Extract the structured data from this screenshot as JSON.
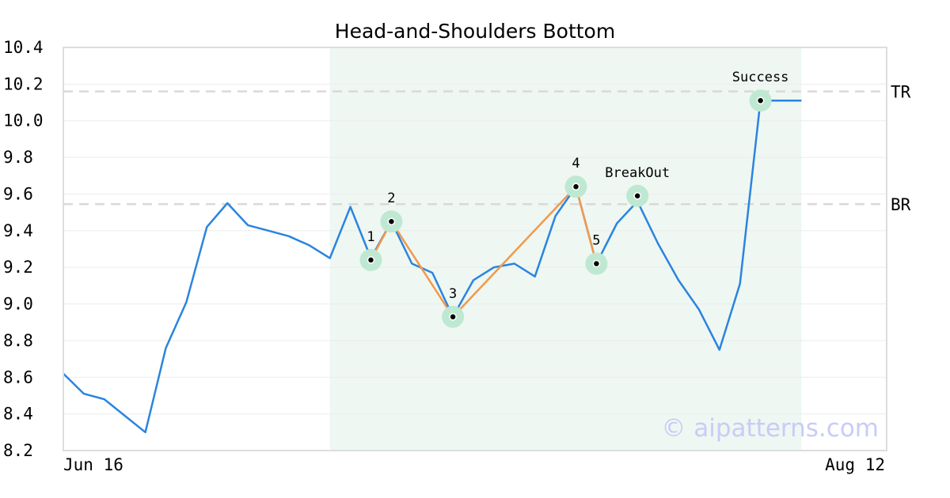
{
  "chart_data": {
    "type": "line",
    "title": "Head-and-Shoulders Bottom",
    "xlabel": "",
    "ylabel": "",
    "ylim": [
      8.2,
      10.4
    ],
    "yticks": [
      "10.4",
      "10.2",
      "10.0",
      "9.8",
      "9.6",
      "9.4",
      "9.2",
      "9.0",
      "8.8",
      "8.6",
      "8.4",
      "8.2"
    ],
    "xtick_labels": [
      "Jun 16",
      "Aug 12"
    ],
    "grid": true,
    "colors": {
      "price": "#2b84e0",
      "pattern": "#f2994a",
      "highlight_band": "#eef7f2",
      "marker_halo": "#bfe8d2",
      "reference_line": "#d9d9d9",
      "watermark": "#c8ccf7"
    },
    "series": [
      {
        "values": [
          8.62,
          8.51,
          8.48,
          8.39,
          8.3,
          8.76,
          9.01,
          9.42,
          9.55,
          9.43,
          9.4,
          9.37,
          9.32,
          9.25,
          9.53,
          9.25,
          9.45,
          9.22,
          9.17,
          8.93,
          9.13,
          9.2,
          9.22,
          9.15,
          9.48,
          9.64,
          9.22,
          9.44,
          9.56,
          9.33,
          9.13,
          8.97,
          8.75,
          9.11,
          10.11,
          10.11,
          10.11
        ]
      }
    ],
    "highlight_range": {
      "start_index": 13,
      "end_index": 36
    },
    "reference_lines": [
      {
        "label": "TR",
        "value": 10.16
      },
      {
        "label": "BR",
        "value": 9.545
      }
    ],
    "pattern_points": [
      {
        "index": 15,
        "value": 9.24,
        "label": "1"
      },
      {
        "index": 16,
        "value": 9.45,
        "label": "2"
      },
      {
        "index": 19,
        "value": 8.93,
        "label": "3"
      },
      {
        "index": 25,
        "value": 9.64,
        "label": "4"
      },
      {
        "index": 26,
        "value": 9.22,
        "label": "5"
      }
    ],
    "event_points": [
      {
        "index": 28,
        "value": 9.59,
        "label": "BreakOut"
      },
      {
        "index": 34,
        "value": 10.11,
        "label": "Success"
      }
    ],
    "watermark": "© aipatterns.com"
  }
}
